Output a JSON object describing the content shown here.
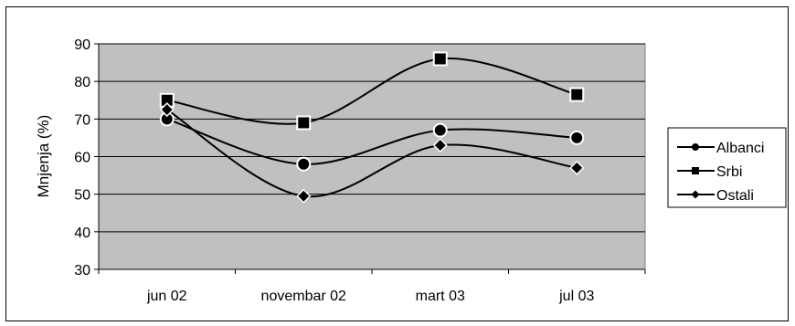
{
  "chart_data": {
    "type": "line",
    "categories": [
      "jun 02",
      "novembar 02",
      "mart 03",
      "jul 03"
    ],
    "ylabel": "Mnjenja (%)",
    "xlabel": "",
    "title": "",
    "ylim": [
      30,
      90
    ],
    "yticks": [
      30,
      40,
      50,
      60,
      70,
      80,
      90
    ],
    "grid": true,
    "smooth": true,
    "legend_position": "right",
    "plot_background": "#c0c0c0",
    "series": [
      {
        "name": "Albanci",
        "marker": "circle",
        "values": [
          70,
          58,
          67,
          65
        ]
      },
      {
        "name": "Srbi",
        "marker": "square",
        "values": [
          75,
          69,
          86,
          76.5
        ]
      },
      {
        "name": "Ostali",
        "marker": "diamond",
        "values": [
          72.5,
          49.5,
          63,
          57
        ]
      }
    ]
  }
}
